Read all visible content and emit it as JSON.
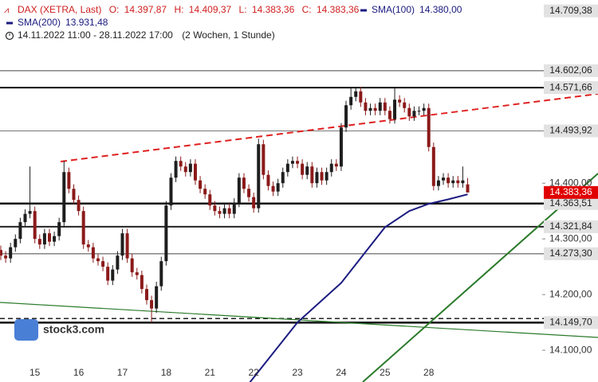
{
  "chart_data": {
    "type": "candlestick",
    "instrument": "DAX (XETRA, Last)",
    "ohlc_header": [
      {
        "label": "O:",
        "value": "14.397,87"
      },
      {
        "label": "H:",
        "value": "14.409,37"
      },
      {
        "label": "L:",
        "value": "14.383,36"
      },
      {
        "label": "C:",
        "value": "14.383,36"
      }
    ],
    "legend": [
      {
        "name": "SMA(100)",
        "value": "14.380,00",
        "color": "#1a1a80"
      },
      {
        "name": "SMA(200)",
        "value": "13.931,48",
        "color": "#1a1a80"
      }
    ],
    "period": "14.11.2022 11:00 - 28.11.2022 17:00",
    "period_note": "(2 Wochen, 1 Stunde)",
    "logo": "stock3.com",
    "up_color": "#1e1e1e",
    "down_color": "#8b1a1a",
    "xlim": [
      0,
      111
    ],
    "ylim": [
      14043,
      14729
    ],
    "xticks": [
      {
        "value": 7,
        "label": "15"
      },
      {
        "value": 16,
        "label": "16"
      },
      {
        "value": 25,
        "label": "17"
      },
      {
        "value": 34,
        "label": "18"
      },
      {
        "value": 43,
        "label": "21"
      },
      {
        "value": 52,
        "label": "22"
      },
      {
        "value": 61,
        "label": "23"
      },
      {
        "value": 70,
        "label": "24"
      },
      {
        "value": 79,
        "label": "25"
      },
      {
        "value": 88,
        "label": "28"
      }
    ],
    "yticks": [
      {
        "value": 14400,
        "label": "14.400,00"
      },
      {
        "value": 14300,
        "label": "14.300,00"
      },
      {
        "value": 14200,
        "label": "14.200,00"
      },
      {
        "value": 14100,
        "label": "14.100,00"
      }
    ],
    "levels": [
      {
        "value": 14709.38,
        "label": "14.709,38"
      },
      {
        "value": 14602.06,
        "label": "14.602,06"
      },
      {
        "value": 14571.66,
        "label": "14.571,66"
      },
      {
        "value": 14493.92,
        "label": "14.493,92"
      },
      {
        "value": 14363.51,
        "label": "14.363,51"
      },
      {
        "value": 14321.84,
        "label": "14.321,84"
      },
      {
        "value": 14273.3,
        "label": "14.273,30"
      },
      {
        "value": 14149.7,
        "label": "14.149,70"
      }
    ],
    "dashed_levels": [
      14157
    ],
    "last_price": {
      "value": 14383.36,
      "label": "14.383,36",
      "color": "#e00000"
    },
    "sma100": {
      "x": [
        51,
        61,
        70,
        79,
        84,
        88,
        92,
        96
      ],
      "values": [
        14040,
        14150,
        14221,
        14321,
        14350,
        14363,
        14371,
        14380
      ]
    },
    "candles": [
      [
        14280,
        14288,
        14262,
        14270
      ],
      [
        14270,
        14278,
        14257,
        14265
      ],
      [
        14265,
        14293,
        14257,
        14285
      ],
      [
        14285,
        14308,
        14277,
        14300
      ],
      [
        14300,
        14338,
        14292,
        14330
      ],
      [
        14330,
        14353,
        14322,
        14345
      ],
      [
        14345,
        14430,
        14337,
        14350
      ],
      [
        14350,
        14358,
        14292,
        14300
      ],
      [
        14300,
        14308,
        14282,
        14290
      ],
      [
        14290,
        14318,
        14282,
        14310
      ],
      [
        14310,
        14318,
        14287,
        14295
      ],
      [
        14295,
        14313,
        14287,
        14305
      ],
      [
        14305,
        14338,
        14297,
        14330
      ],
      [
        14330,
        14440,
        14322,
        14420
      ],
      [
        14420,
        14428,
        14382,
        14390
      ],
      [
        14390,
        14398,
        14362,
        14370
      ],
      [
        14370,
        14378,
        14342,
        14350
      ],
      [
        14350,
        14358,
        14282,
        14290
      ],
      [
        14290,
        14298,
        14277,
        14285
      ],
      [
        14285,
        14293,
        14257,
        14265
      ],
      [
        14265,
        14273,
        14252,
        14260
      ],
      [
        14260,
        14268,
        14242,
        14250
      ],
      [
        14250,
        14258,
        14217,
        14225
      ],
      [
        14225,
        14253,
        14217,
        14245
      ],
      [
        14245,
        14278,
        14237,
        14270
      ],
      [
        14270,
        14318,
        14262,
        14310
      ],
      [
        14310,
        14318,
        14257,
        14265
      ],
      [
        14265,
        14273,
        14232,
        14240
      ],
      [
        14240,
        14248,
        14227,
        14235
      ],
      [
        14235,
        14243,
        14202,
        14210
      ],
      [
        14210,
        14218,
        14182,
        14190
      ],
      [
        14190,
        14198,
        14150,
        14175
      ],
      [
        14175,
        14223,
        14167,
        14215
      ],
      [
        14215,
        14268,
        14207,
        14260
      ],
      [
        14260,
        14368,
        14252,
        14360
      ],
      [
        14360,
        14418,
        14352,
        14410
      ],
      [
        14410,
        14448,
        14402,
        14440
      ],
      [
        14440,
        14448,
        14422,
        14430
      ],
      [
        14430,
        14438,
        14412,
        14420
      ],
      [
        14420,
        14443,
        14412,
        14435
      ],
      [
        14435,
        14443,
        14397,
        14405
      ],
      [
        14405,
        14413,
        14382,
        14390
      ],
      [
        14390,
        14398,
        14372,
        14380
      ],
      [
        14380,
        14388,
        14352,
        14360
      ],
      [
        14360,
        14368,
        14342,
        14350
      ],
      [
        14350,
        14358,
        14337,
        14345
      ],
      [
        14345,
        14363,
        14337,
        14355
      ],
      [
        14355,
        14363,
        14337,
        14345
      ],
      [
        14345,
        14373,
        14337,
        14365
      ],
      [
        14365,
        14418,
        14357,
        14410
      ],
      [
        14410,
        14418,
        14382,
        14390
      ],
      [
        14390,
        14398,
        14367,
        14375
      ],
      [
        14375,
        14383,
        14347,
        14355
      ],
      [
        14355,
        14480,
        14347,
        14470
      ],
      [
        14470,
        14478,
        14407,
        14415
      ],
      [
        14415,
        14423,
        14387,
        14395
      ],
      [
        14395,
        14403,
        14377,
        14385
      ],
      [
        14385,
        14408,
        14377,
        14400
      ],
      [
        14400,
        14428,
        14392,
        14420
      ],
      [
        14420,
        14443,
        14412,
        14435
      ],
      [
        14435,
        14448,
        14427,
        14440
      ],
      [
        14440,
        14448,
        14427,
        14435
      ],
      [
        14435,
        14443,
        14407,
        14415
      ],
      [
        14415,
        14438,
        14407,
        14430
      ],
      [
        14430,
        14438,
        14392,
        14400
      ],
      [
        14400,
        14428,
        14392,
        14420
      ],
      [
        14420,
        14428,
        14397,
        14405
      ],
      [
        14405,
        14428,
        14397,
        14420
      ],
      [
        14420,
        14443,
        14412,
        14435
      ],
      [
        14435,
        14443,
        14422,
        14430
      ],
      [
        14430,
        14508,
        14422,
        14500
      ],
      [
        14500,
        14548,
        14492,
        14540
      ],
      [
        14540,
        14571,
        14532,
        14555
      ],
      [
        14555,
        14573,
        14547,
        14565
      ],
      [
        14565,
        14573,
        14537,
        14545
      ],
      [
        14545,
        14553,
        14522,
        14530
      ],
      [
        14530,
        14543,
        14522,
        14535
      ],
      [
        14535,
        14543,
        14522,
        14530
      ],
      [
        14530,
        14553,
        14522,
        14545
      ],
      [
        14545,
        14553,
        14522,
        14530
      ],
      [
        14530,
        14538,
        14507,
        14515
      ],
      [
        14515,
        14571,
        14507,
        14550
      ],
      [
        14550,
        14558,
        14537,
        14545
      ],
      [
        14545,
        14553,
        14527,
        14535
      ],
      [
        14535,
        14543,
        14512,
        14520
      ],
      [
        14520,
        14538,
        14512,
        14530
      ],
      [
        14530,
        14538,
        14522,
        14530
      ],
      [
        14530,
        14543,
        14522,
        14535
      ],
      [
        14535,
        14543,
        14457,
        14465
      ],
      [
        14465,
        14473,
        14387,
        14395
      ],
      [
        14395,
        14413,
        14387,
        14405
      ],
      [
        14405,
        14418,
        14397,
        14410
      ],
      [
        14410,
        14418,
        14392,
        14400
      ],
      [
        14400,
        14413,
        14392,
        14405
      ],
      [
        14405,
        14413,
        14392,
        14400
      ],
      [
        14400,
        14430,
        14392,
        14405
      ],
      [
        14397.87,
        14409.37,
        14383.36,
        14383.36
      ]
    ]
  }
}
